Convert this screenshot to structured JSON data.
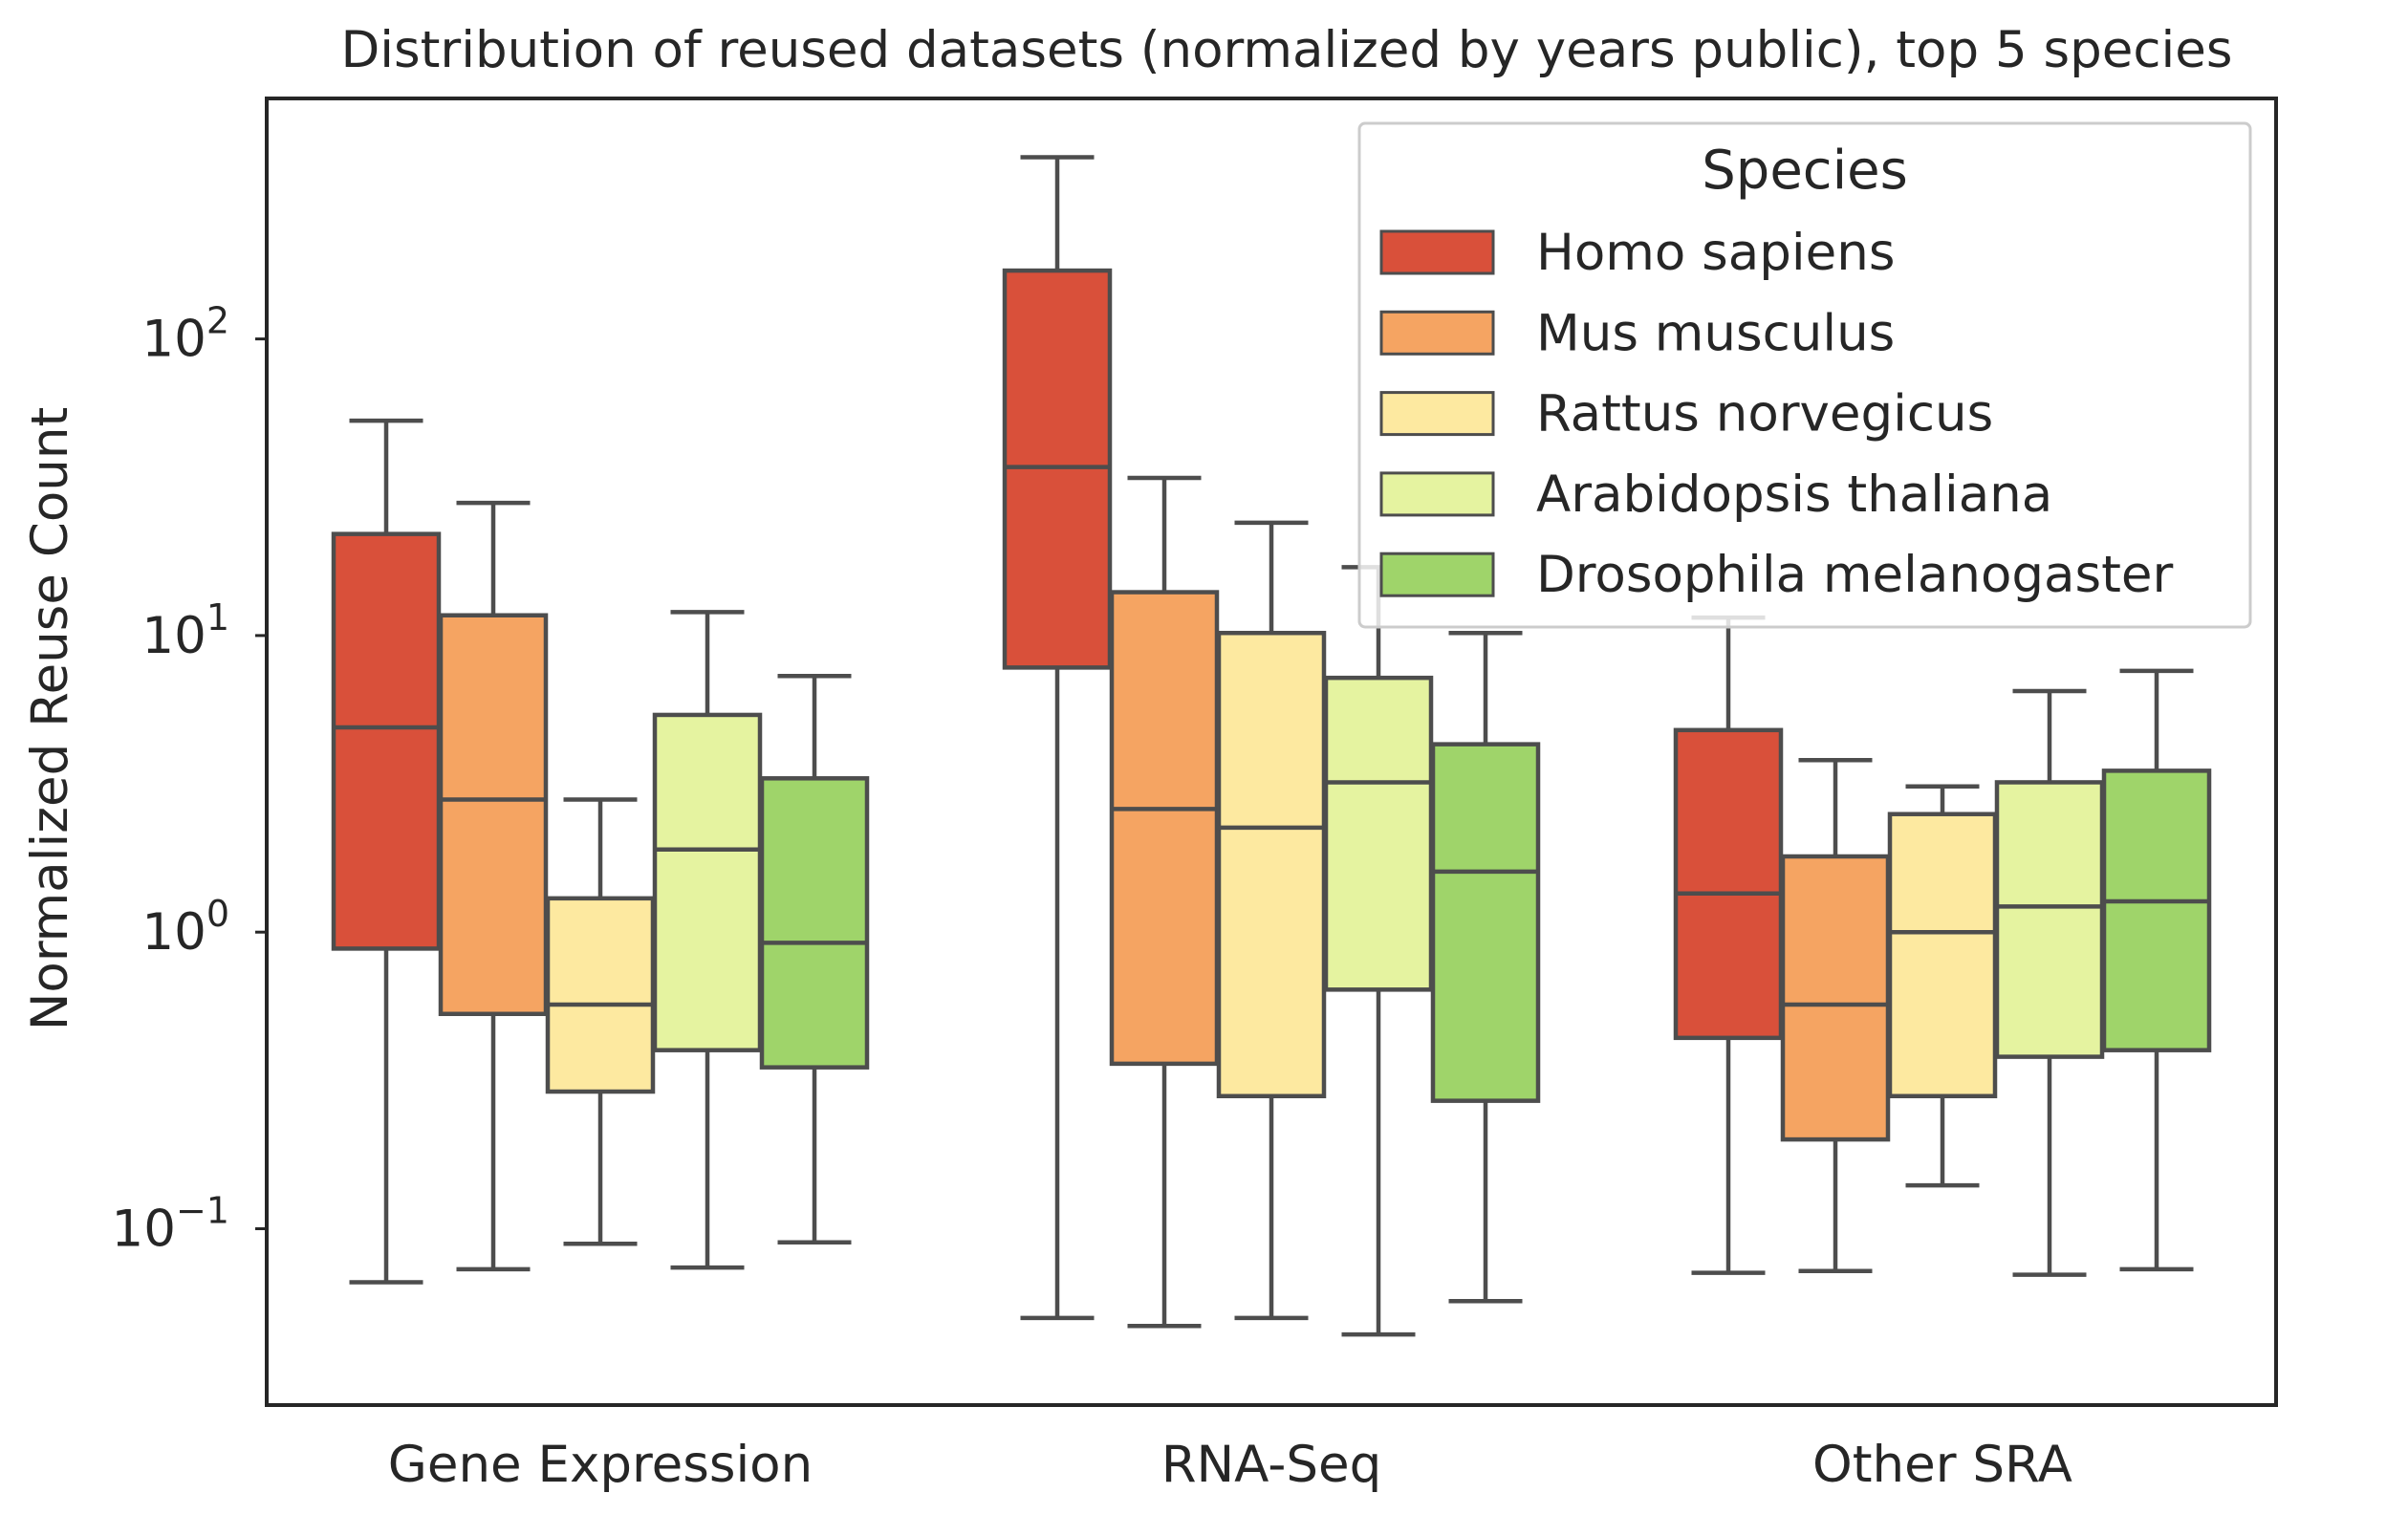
{
  "chart_data": {
    "type": "box",
    "title": "Distribution of reused datasets (normalized by years public), top 5 species",
    "xlabel": "",
    "ylabel": "Normalized Reuse Count",
    "yscale": "log",
    "ylim": [
      0.03,
      600
    ],
    "yticks": [
      {
        "value": 0.1,
        "base": "10",
        "exp": "−1"
      },
      {
        "value": 1,
        "base": "10",
        "exp": "0"
      },
      {
        "value": 10,
        "base": "10",
        "exp": "1"
      },
      {
        "value": 100,
        "base": "10",
        "exp": "2"
      }
    ],
    "grid": false,
    "legend": {
      "title": "Species",
      "position": "top-right"
    },
    "categories": [
      "Gene Expression",
      "RNA-Seq",
      "Other SRA"
    ],
    "series": [
      {
        "name": "Homo sapiens",
        "color": "#d9503a",
        "boxes": [
          {
            "whislo": 0.066,
            "q1": 0.88,
            "med": 4.9,
            "q3": 22,
            "whishi": 53
          },
          {
            "whislo": 0.05,
            "q1": 7.8,
            "med": 37,
            "q3": 170,
            "whishi": 410
          },
          {
            "whislo": 0.071,
            "q1": 0.44,
            "med": 1.35,
            "q3": 4.8,
            "whishi": 11.5
          }
        ]
      },
      {
        "name": "Mus musculus",
        "color": "#f5a462",
        "boxes": [
          {
            "whislo": 0.073,
            "q1": 0.53,
            "med": 2.8,
            "q3": 11.7,
            "whishi": 28
          },
          {
            "whislo": 0.047,
            "q1": 0.36,
            "med": 2.6,
            "q3": 14,
            "whishi": 34
          },
          {
            "whislo": 0.072,
            "q1": 0.2,
            "med": 0.57,
            "q3": 1.8,
            "whishi": 3.8
          }
        ]
      },
      {
        "name": "Rattus norvegicus",
        "color": "#fde9a0",
        "boxes": [
          {
            "whislo": 0.089,
            "q1": 0.29,
            "med": 0.57,
            "q3": 1.3,
            "whishi": 2.8
          },
          {
            "whislo": 0.05,
            "q1": 0.28,
            "med": 2.25,
            "q3": 10.2,
            "whishi": 24
          },
          {
            "whislo": 0.14,
            "q1": 0.28,
            "med": 1.0,
            "q3": 2.5,
            "whishi": 3.1
          }
        ]
      },
      {
        "name": "Arabidopsis thaliana",
        "color": "#e5f3a0",
        "boxes": [
          {
            "whislo": 0.074,
            "q1": 0.4,
            "med": 1.9,
            "q3": 5.4,
            "whishi": 12
          },
          {
            "whislo": 0.044,
            "q1": 0.64,
            "med": 3.2,
            "q3": 7.2,
            "whishi": 17
          },
          {
            "whislo": 0.07,
            "q1": 0.38,
            "med": 1.22,
            "q3": 3.2,
            "whishi": 6.5
          }
        ]
      },
      {
        "name": "Drosophila melanogaster",
        "color": "#9fd46a",
        "boxes": [
          {
            "whislo": 0.09,
            "q1": 0.35,
            "med": 0.92,
            "q3": 3.3,
            "whishi": 7.3
          },
          {
            "whislo": 0.057,
            "q1": 0.27,
            "med": 1.6,
            "q3": 4.3,
            "whishi": 10.2
          },
          {
            "whislo": 0.073,
            "q1": 0.4,
            "med": 1.27,
            "q3": 3.5,
            "whishi": 7.6
          }
        ]
      }
    ]
  }
}
